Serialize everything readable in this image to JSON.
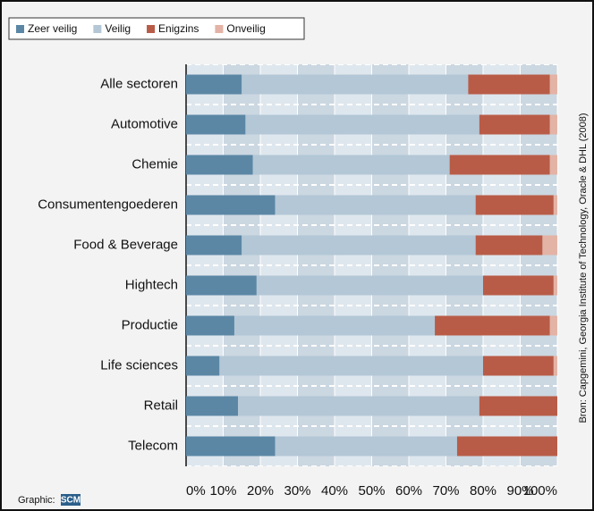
{
  "chart_data": {
    "type": "stacked-barh",
    "categories": [
      "Alle sectoren",
      "Automotive",
      "Chemie",
      "Consumentengoederen",
      "Food & Beverage",
      "Hightech",
      "Productie",
      "Life sciences",
      "Retail",
      "Telecom"
    ],
    "series": [
      {
        "name": "Zeer veilig",
        "color": "#5b87a5",
        "values": [
          15,
          16,
          18,
          24,
          15,
          19,
          13,
          9,
          14,
          24
        ]
      },
      {
        "name": "Veilig",
        "color": "#b3c7d6",
        "values": [
          61,
          63,
          53,
          54,
          63,
          61,
          54,
          71,
          65,
          49
        ]
      },
      {
        "name": "Enigzins",
        "color": "#b85c48",
        "values": [
          22,
          19,
          27,
          21,
          18,
          19,
          31,
          19,
          21,
          27
        ]
      },
      {
        "name": "Onveilig",
        "color": "#e3b3a5",
        "values": [
          2,
          2,
          2,
          1,
          4,
          1,
          2,
          1,
          0,
          0
        ]
      }
    ],
    "xlim": [
      0,
      100
    ],
    "xticks": [
      {
        "value": 0,
        "label": "0%"
      },
      {
        "value": 10,
        "label": "10%"
      },
      {
        "value": 20,
        "label": "20%"
      },
      {
        "value": 30,
        "label": "30%"
      },
      {
        "value": 40,
        "label": "40%"
      },
      {
        "value": 50,
        "label": "50%"
      },
      {
        "value": 60,
        "label": "60%"
      },
      {
        "value": 70,
        "label": "70%"
      },
      {
        "value": 80,
        "label": "80%"
      },
      {
        "value": 90,
        "label": "90%"
      },
      {
        "value": 100,
        "label": "100%"
      }
    ],
    "grid": true,
    "legend": "top-left",
    "source": "Bron: Capgemini, Georgia Institute of Technology, Oracle & DHL (2008)",
    "credit": "Graphic:",
    "logo": "SCM"
  }
}
